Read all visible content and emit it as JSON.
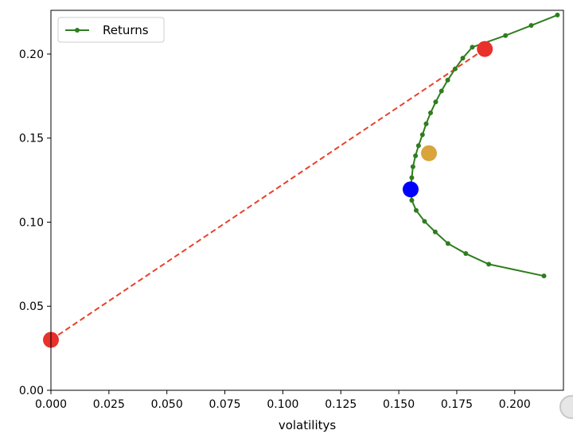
{
  "chart_data": {
    "type": "scatter",
    "xlabel": "volatilitys",
    "ylabel": "",
    "xlim": [
      0.0,
      0.221
    ],
    "ylim": [
      0.0,
      0.226
    ],
    "x_ticks": [
      "0.000",
      "0.025",
      "0.050",
      "0.075",
      "0.100",
      "0.125",
      "0.150",
      "0.175",
      "0.200"
    ],
    "y_ticks": [
      "0.00",
      "0.05",
      "0.10",
      "0.15",
      "0.20"
    ],
    "x_tick_values": [
      0.0,
      0.025,
      0.05,
      0.075,
      0.1,
      0.125,
      0.15,
      0.175,
      0.2
    ],
    "y_tick_values": [
      0.0,
      0.05,
      0.1,
      0.15,
      0.2
    ],
    "legend": {
      "placement": "top-left",
      "entries": [
        "Returns"
      ]
    },
    "grid": false,
    "series": [
      {
        "name": "Returns",
        "style": "line-with-markers",
        "color": "#2e7d1e",
        "points": [
          [
            0.2126,
            0.068
          ],
          [
            0.1888,
            0.075
          ],
          [
            0.1789,
            0.0813
          ],
          [
            0.1712,
            0.0873
          ],
          [
            0.1657,
            0.0942
          ],
          [
            0.1611,
            0.1005
          ],
          [
            0.1575,
            0.107
          ],
          [
            0.1556,
            0.113
          ],
          [
            0.1551,
            0.1195
          ],
          [
            0.1556,
            0.1265
          ],
          [
            0.1561,
            0.133
          ],
          [
            0.1572,
            0.1395
          ],
          [
            0.1585,
            0.1455
          ],
          [
            0.1602,
            0.152
          ],
          [
            0.1618,
            0.1585
          ],
          [
            0.1637,
            0.165
          ],
          [
            0.1659,
            0.1715
          ],
          [
            0.1684,
            0.178
          ],
          [
            0.1711,
            0.1845
          ],
          [
            0.1743,
            0.1912
          ],
          [
            0.1776,
            0.1976
          ],
          [
            0.1817,
            0.2041
          ],
          [
            0.196,
            0.211
          ],
          [
            0.2071,
            0.217
          ],
          [
            0.2184,
            0.2232
          ]
        ]
      },
      {
        "name": "",
        "style": "dashed-line",
        "color": "#e8412a",
        "points": [
          [
            0.0,
            0.03
          ],
          [
            0.1871,
            0.203
          ]
        ]
      }
    ],
    "highlighted_points": [
      {
        "x": 0.0,
        "y": 0.03,
        "color": "#e8312a"
      },
      {
        "x": 0.1871,
        "y": 0.203,
        "color": "#e8312a"
      },
      {
        "x": 0.1551,
        "y": 0.1195,
        "color": "#0000ff"
      },
      {
        "x": 0.163,
        "y": 0.141,
        "color": "#d9a43c"
      }
    ]
  }
}
